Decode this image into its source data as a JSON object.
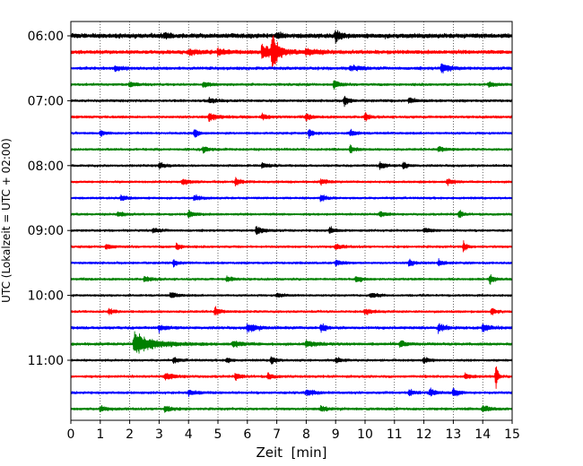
{
  "chart_data": {
    "type": "line",
    "title": "",
    "xlabel": "Zeit  [min]",
    "ylabel": "UTC (Lokalzeit = UTC + 02:00)",
    "xlim": [
      0,
      15
    ],
    "x_ticks": [
      "0",
      "1",
      "2",
      "3",
      "4",
      "5",
      "6",
      "7",
      "8",
      "9",
      "10",
      "11",
      "12",
      "13",
      "14",
      "15"
    ],
    "y_tick_labels": [
      "06:00",
      "07:00",
      "08:00",
      "09:00",
      "10:00",
      "11:00"
    ],
    "grid": "vertical dotted",
    "trace_colors": [
      "#000000",
      "#ff0000",
      "#0000ff",
      "#008000"
    ],
    "traces": [
      {
        "start": "06:00",
        "color": "#000000",
        "noise": 2.0,
        "events": [
          [
            9.0,
            6,
            0.15
          ],
          [
            3.2,
            3,
            0.12
          ],
          [
            7.0,
            3,
            0.12
          ]
        ]
      },
      {
        "start": "06:15",
        "color": "#ff0000",
        "noise": 1.6,
        "events": [
          [
            6.85,
            20,
            0.15
          ],
          [
            6.5,
            7,
            0.45
          ],
          [
            5.0,
            3,
            0.3
          ],
          [
            8.0,
            3,
            0.35
          ],
          [
            4.0,
            2.5,
            0.3
          ]
        ]
      },
      {
        "start": "06:30",
        "color": "#0000ff",
        "noise": 1.3,
        "events": [
          [
            12.6,
            5,
            0.25
          ],
          [
            1.5,
            2.5,
            0.2
          ],
          [
            9.5,
            2.5,
            0.3
          ]
        ]
      },
      {
        "start": "06:45",
        "color": "#008000",
        "noise": 1.1,
        "events": [
          [
            8.95,
            5,
            0.15
          ],
          [
            2.0,
            2.5,
            0.2
          ],
          [
            4.5,
            2.5,
            0.2
          ],
          [
            14.2,
            2.5,
            0.2
          ]
        ]
      },
      {
        "start": "07:00",
        "color": "#000000",
        "noise": 1.1,
        "events": [
          [
            9.3,
            6,
            0.12
          ],
          [
            4.7,
            2.5,
            0.2
          ],
          [
            11.5,
            2.5,
            0.2
          ]
        ]
      },
      {
        "start": "07:15",
        "color": "#ff0000",
        "noise": 1.1,
        "events": [
          [
            4.7,
            4,
            0.25
          ],
          [
            10.0,
            4.5,
            0.1
          ],
          [
            8.0,
            3,
            0.15
          ],
          [
            6.5,
            2.5,
            0.2
          ]
        ]
      },
      {
        "start": "07:30",
        "color": "#0000ff",
        "noise": 1.0,
        "events": [
          [
            4.2,
            4.5,
            0.12
          ],
          [
            9.5,
            3.5,
            0.15
          ],
          [
            8.1,
            5,
            0.1
          ],
          [
            1.0,
            3,
            0.15
          ]
        ]
      },
      {
        "start": "07:45",
        "color": "#008000",
        "noise": 1.0,
        "events": [
          [
            9.5,
            3.5,
            0.15
          ],
          [
            4.5,
            2.5,
            0.2
          ],
          [
            12.5,
            2.5,
            0.2
          ]
        ]
      },
      {
        "start": "08:00",
        "color": "#000000",
        "noise": 1.0,
        "events": [
          [
            10.5,
            4,
            0.15
          ],
          [
            11.3,
            4,
            0.12
          ],
          [
            3.0,
            2.5,
            0.2
          ],
          [
            6.5,
            2.5,
            0.2
          ]
        ]
      },
      {
        "start": "08:15",
        "color": "#ff0000",
        "noise": 1.0,
        "events": [
          [
            5.6,
            4,
            0.15
          ],
          [
            3.8,
            3,
            0.2
          ],
          [
            8.5,
            2.5,
            0.2
          ],
          [
            12.8,
            3,
            0.2
          ]
        ]
      },
      {
        "start": "08:30",
        "color": "#0000ff",
        "noise": 1.0,
        "events": [
          [
            8.5,
            3.5,
            0.15
          ],
          [
            4.2,
            2.5,
            0.2
          ],
          [
            1.7,
            2.5,
            0.2
          ]
        ]
      },
      {
        "start": "08:45",
        "color": "#008000",
        "noise": 1.0,
        "events": [
          [
            4.0,
            3,
            0.2
          ],
          [
            13.2,
            4,
            0.1
          ],
          [
            1.6,
            2.5,
            0.2
          ],
          [
            10.5,
            2.5,
            0.2
          ]
        ]
      },
      {
        "start": "09:00",
        "color": "#000000",
        "noise": 1.0,
        "events": [
          [
            6.3,
            4,
            0.2
          ],
          [
            8.8,
            3.5,
            0.15
          ],
          [
            2.8,
            2.5,
            0.2
          ],
          [
            12.0,
            2.5,
            0.2
          ]
        ]
      },
      {
        "start": "09:15",
        "color": "#ff0000",
        "noise": 1.0,
        "events": [
          [
            13.35,
            5,
            0.1
          ],
          [
            3.6,
            3.5,
            0.12
          ],
          [
            1.2,
            2.5,
            0.2
          ],
          [
            9.0,
            2.5,
            0.2
          ]
        ]
      },
      {
        "start": "09:30",
        "color": "#0000ff",
        "noise": 1.0,
        "events": [
          [
            11.5,
            3.5,
            0.15
          ],
          [
            12.5,
            3.5,
            0.15
          ],
          [
            3.5,
            3,
            0.15
          ],
          [
            9.0,
            2.5,
            0.2
          ]
        ]
      },
      {
        "start": "09:45",
        "color": "#008000",
        "noise": 1.0,
        "events": [
          [
            14.25,
            5,
            0.12
          ],
          [
            9.7,
            3.5,
            0.15
          ],
          [
            2.5,
            2.5,
            0.2
          ],
          [
            5.3,
            2.5,
            0.2
          ]
        ]
      },
      {
        "start": "10:00",
        "color": "#000000",
        "noise": 0.9,
        "events": [
          [
            3.4,
            3,
            0.2
          ],
          [
            10.2,
            2.5,
            0.2
          ],
          [
            7.0,
            2.2,
            0.2
          ]
        ]
      },
      {
        "start": "10:15",
        "color": "#ff0000",
        "noise": 1.0,
        "events": [
          [
            4.9,
            4,
            0.15
          ],
          [
            14.3,
            3.5,
            0.12
          ],
          [
            1.3,
            3,
            0.12
          ],
          [
            10.0,
            2.5,
            0.2
          ]
        ]
      },
      {
        "start": "10:30",
        "color": "#0000ff",
        "noise": 1.2,
        "events": [
          [
            6.0,
            4,
            0.3
          ],
          [
            8.5,
            4.5,
            0.15
          ],
          [
            12.5,
            4,
            0.2
          ],
          [
            14.0,
            4,
            0.2
          ],
          [
            3.0,
            3,
            0.2
          ]
        ]
      },
      {
        "start": "10:45",
        "color": "#008000",
        "noise": 1.2,
        "events": [
          [
            2.15,
            11,
            0.6
          ],
          [
            11.2,
            4,
            0.15
          ],
          [
            5.5,
            3,
            0.3
          ],
          [
            8.0,
            3,
            0.3
          ]
        ]
      },
      {
        "start": "11:00",
        "color": "#000000",
        "noise": 1.0,
        "events": [
          [
            6.8,
            4,
            0.15
          ],
          [
            5.3,
            3,
            0.12
          ],
          [
            12.0,
            3,
            0.15
          ],
          [
            3.5,
            2.5,
            0.2
          ],
          [
            9.0,
            2.5,
            0.2
          ]
        ]
      },
      {
        "start": "11:15",
        "color": "#ff0000",
        "noise": 1.1,
        "events": [
          [
            14.45,
            16,
            0.05
          ],
          [
            5.6,
            4,
            0.12
          ],
          [
            3.2,
            3,
            0.3
          ],
          [
            6.7,
            3,
            0.15
          ],
          [
            13.4,
            2.5,
            0.2
          ]
        ]
      },
      {
        "start": "11:30",
        "color": "#0000ff",
        "noise": 1.1,
        "events": [
          [
            11.5,
            4,
            0.12
          ],
          [
            13.0,
            4,
            0.15
          ],
          [
            12.2,
            3.5,
            0.2
          ],
          [
            4.0,
            2.5,
            0.3
          ],
          [
            8.0,
            2.5,
            0.3
          ]
        ]
      },
      {
        "start": "11:45",
        "color": "#008000",
        "noise": 1.1,
        "events": [
          [
            3.2,
            3.5,
            0.2
          ],
          [
            14.0,
            3.5,
            0.2
          ],
          [
            1.0,
            2.5,
            0.2
          ],
          [
            8.5,
            2.5,
            0.2
          ]
        ]
      }
    ]
  }
}
